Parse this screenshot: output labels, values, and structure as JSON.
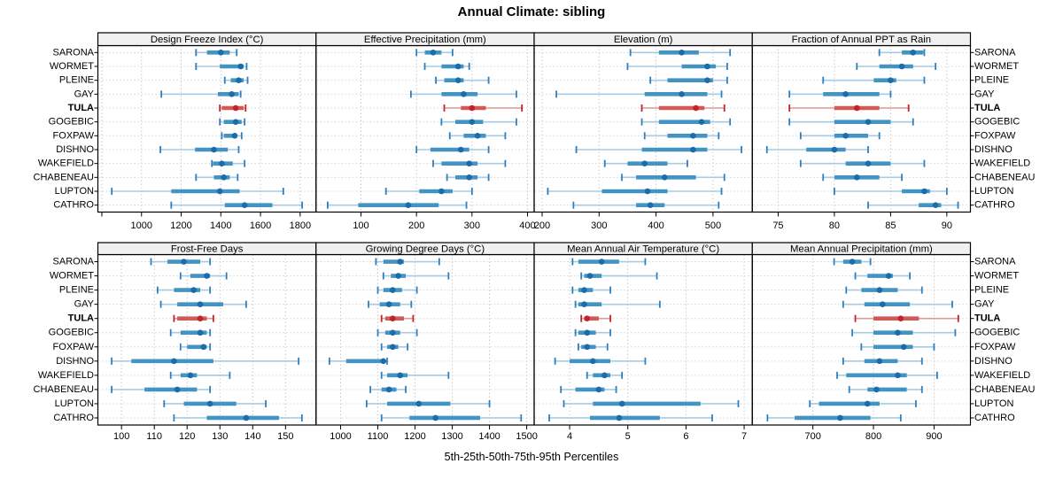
{
  "title": "Annual Climate: sibling",
  "footer": "5th-25th-50th-75th-95th Percentiles",
  "sites": [
    "SARONA",
    "WORMET",
    "PLEINE",
    "GAY",
    "TULA",
    "GOGEBIC",
    "FOXPAW",
    "DISHNO",
    "WAKEFIELD",
    "CHABENEAU",
    "LUPTON",
    "CATHRO"
  ],
  "highlight_site": "TULA",
  "colors": {
    "normal": {
      "dot": "#1b6ca8",
      "box": "#4393c3",
      "line": "#a6cbe3",
      "cap": "#2f7fbe"
    },
    "highlight": {
      "dot": "#c02428",
      "box": "#cf5a56",
      "line": "#dc9a97",
      "cap": "#c02428"
    },
    "strip_bg": "#f0f0f0",
    "grid": "#c9c9c9",
    "border": "#000000",
    "text": "#000000"
  },
  "chart_data": {
    "type": "trellis-percentile-dotplot",
    "percentile_order": [
      "p5",
      "p25",
      "p50",
      "p75",
      "p95"
    ],
    "panel_grid": {
      "rows": 2,
      "cols": 4
    },
    "panels": [
      {
        "title": "Design Freeze Index (°C)",
        "row": 0,
        "col": 0,
        "xlim": [
          780,
          1880
        ],
        "ticks": [
          1000,
          1200,
          1400,
          1600,
          1800
        ],
        "extra_ticks": [
          800
        ],
        "values": {
          "SARONA": [
            1275,
            1330,
            1400,
            1445,
            1480
          ],
          "WORMET": [
            1275,
            1395,
            1500,
            1515,
            1530
          ],
          "PLEINE": [
            1420,
            1450,
            1490,
            1515,
            1535
          ],
          "GAY": [
            1100,
            1385,
            1455,
            1490,
            1500
          ],
          "TULA": [
            1395,
            1405,
            1475,
            1515,
            1525
          ],
          "GOGEBIC": [
            1395,
            1415,
            1475,
            1505,
            1520
          ],
          "FOXPAW": [
            1405,
            1415,
            1470,
            1480,
            1505
          ],
          "DISHNO": [
            1095,
            1270,
            1365,
            1435,
            1490
          ],
          "WAKEFIELD": [
            1355,
            1360,
            1405,
            1460,
            1520
          ],
          "CHABENEAU": [
            1275,
            1365,
            1415,
            1445,
            1485
          ],
          "LUPTON": [
            850,
            1150,
            1395,
            1495,
            1715
          ],
          "CATHRO": [
            1150,
            1420,
            1520,
            1660,
            1810
          ]
        }
      },
      {
        "title": "Effective Precipitation (mm)",
        "row": 0,
        "col": 1,
        "xlim": [
          19,
          412
        ],
        "ticks": [
          100,
          200,
          300,
          400
        ],
        "extra_ticks": [],
        "values": {
          "SARONA": [
            200,
            215,
            230,
            245,
            265
          ],
          "WORMET": [
            215,
            245,
            275,
            285,
            295
          ],
          "PLEINE": [
            235,
            250,
            275,
            285,
            330
          ],
          "GAY": [
            190,
            245,
            285,
            310,
            380
          ],
          "TULA": [
            250,
            280,
            300,
            325,
            390
          ],
          "GOGEBIC": [
            245,
            270,
            300,
            320,
            380
          ],
          "FOXPAW": [
            260,
            285,
            310,
            325,
            360
          ],
          "DISHNO": [
            200,
            225,
            280,
            295,
            330
          ],
          "WAKEFIELD": [
            230,
            245,
            295,
            310,
            360
          ],
          "CHABENEAU": [
            255,
            270,
            295,
            310,
            330
          ],
          "LUPTON": [
            145,
            205,
            245,
            265,
            300
          ],
          "CATHRO": [
            40,
            95,
            185,
            240,
            290
          ]
        }
      },
      {
        "title": "Elevation (m)",
        "row": 0,
        "col": 2,
        "xlim": [
          186,
          569
        ],
        "ticks": [
          200,
          300,
          400,
          500
        ],
        "extra_ticks": [],
        "values": {
          "SARONA": [
            355,
            405,
            445,
            475,
            530
          ],
          "WORMET": [
            350,
            445,
            490,
            505,
            525
          ],
          "PLEINE": [
            390,
            420,
            490,
            500,
            525
          ],
          "GAY": [
            225,
            380,
            445,
            490,
            515
          ],
          "TULA": [
            375,
            405,
            470,
            485,
            520
          ],
          "GOGEBIC": [
            375,
            405,
            480,
            495,
            530
          ],
          "FOXPAW": [
            380,
            420,
            465,
            490,
            510
          ],
          "DISHNO": [
            260,
            375,
            465,
            490,
            550
          ],
          "WAKEFIELD": [
            310,
            350,
            380,
            420,
            455
          ],
          "CHABENEAU": [
            340,
            365,
            415,
            470,
            520
          ],
          "LUPTON": [
            210,
            305,
            385,
            420,
            515
          ],
          "CATHRO": [
            255,
            365,
            390,
            415,
            510
          ]
        }
      },
      {
        "title": "Fraction of Annual PPT as Rain",
        "row": 0,
        "col": 3,
        "xlim": [
          72.7,
          92.1
        ],
        "ticks": [
          75,
          80,
          85,
          90
        ],
        "extra_ticks": [],
        "values": {
          "SARONA": [
            84,
            86,
            87,
            87.9,
            88
          ],
          "WORMET": [
            82,
            84,
            86,
            87,
            89
          ],
          "PLEINE": [
            79,
            83.5,
            85,
            85.5,
            88
          ],
          "GAY": [
            76,
            79,
            81,
            84,
            85
          ],
          "TULA": [
            76,
            80,
            82,
            84,
            86.6
          ],
          "GOGEBIC": [
            76,
            80,
            83,
            85,
            87
          ],
          "FOXPAW": [
            77,
            80,
            81,
            83,
            84
          ],
          "DISHNO": [
            74,
            77.5,
            80,
            81,
            83
          ],
          "WAKEFIELD": [
            77,
            81,
            83,
            85,
            88
          ],
          "CHABENEAU": [
            79,
            80,
            82,
            84,
            86
          ],
          "LUPTON": [
            80,
            86,
            88,
            88.5,
            90
          ],
          "CATHRO": [
            83,
            87.5,
            89,
            89.5,
            91
          ]
        }
      },
      {
        "title": "Frost-Free Days",
        "row": 1,
        "col": 0,
        "xlim": [
          92.8,
          159.3
        ],
        "ticks": [
          100,
          110,
          120,
          130,
          140,
          150
        ],
        "extra_ticks": [],
        "values": {
          "SARONA": [
            109,
            114,
            119,
            124,
            127
          ],
          "WORMET": [
            118,
            121,
            126,
            127,
            132
          ],
          "PLEINE": [
            111,
            116,
            122,
            124,
            127
          ],
          "GAY": [
            112,
            117,
            124,
            131,
            138
          ],
          "TULA": [
            116,
            117,
            124,
            126,
            128
          ],
          "GOGEBIC": [
            115,
            118,
            124,
            126,
            127
          ],
          "FOXPAW": [
            118,
            120,
            125,
            126,
            127
          ],
          "DISHNO": [
            97,
            103,
            116,
            128,
            154
          ],
          "WAKEFIELD": [
            115,
            118,
            121,
            123,
            133
          ],
          "CHABENEAU": [
            97,
            107,
            117,
            123,
            127
          ],
          "LUPTON": [
            113,
            119,
            127,
            135,
            144
          ],
          "CATHRO": [
            116,
            126,
            138,
            148,
            155
          ]
        }
      },
      {
        "title": "Growing Degree Days (°C)",
        "row": 1,
        "col": 1,
        "xlim": [
          934,
          1520
        ],
        "ticks": [
          1000,
          1100,
          1200,
          1300,
          1400,
          1500
        ],
        "extra_ticks": [],
        "values": {
          "SARONA": [
            1095,
            1115,
            1160,
            1170,
            1265
          ],
          "WORMET": [
            1115,
            1135,
            1155,
            1175,
            1290
          ],
          "PLEINE": [
            1100,
            1115,
            1140,
            1165,
            1205
          ],
          "GAY": [
            1075,
            1105,
            1130,
            1160,
            1190
          ],
          "TULA": [
            1110,
            1120,
            1140,
            1170,
            1195
          ],
          "GOGEBIC": [
            1100,
            1120,
            1140,
            1160,
            1205
          ],
          "FOXPAW": [
            1110,
            1125,
            1140,
            1155,
            1180
          ],
          "DISHNO": [
            970,
            1015,
            1115,
            1120,
            1125
          ],
          "WAKEFIELD": [
            1110,
            1125,
            1160,
            1180,
            1290
          ],
          "CHABENEAU": [
            1080,
            1110,
            1130,
            1150,
            1175
          ],
          "LUPTON": [
            1070,
            1125,
            1210,
            1295,
            1400
          ],
          "CATHRO": [
            1110,
            1185,
            1255,
            1375,
            1485
          ]
        }
      },
      {
        "title": "Mean Annual Air Temperature (°C)",
        "row": 1,
        "col": 2,
        "xlim": [
          3.39,
          7.14
        ],
        "ticks": [
          4,
          5,
          6,
          7
        ],
        "extra_ticks": [],
        "values": {
          "SARONA": [
            4.05,
            4.15,
            4.55,
            4.85,
            5.3
          ],
          "WORMET": [
            4.2,
            4.25,
            4.35,
            4.55,
            5.5
          ],
          "PLEINE": [
            4.05,
            4.15,
            4.25,
            4.4,
            4.7
          ],
          "GAY": [
            4.1,
            4.15,
            4.25,
            4.55,
            5.55
          ],
          "TULA": [
            4.2,
            4.25,
            4.3,
            4.5,
            4.7
          ],
          "GOGEBIC": [
            4.1,
            4.15,
            4.3,
            4.45,
            4.7
          ],
          "FOXPAW": [
            4.15,
            4.2,
            4.3,
            4.45,
            4.65
          ],
          "DISHNO": [
            3.75,
            4.0,
            4.4,
            4.7,
            5.3
          ],
          "WAKEFIELD": [
            4.3,
            4.4,
            4.6,
            4.7,
            4.9
          ],
          "CHABENEAU": [
            3.85,
            4.1,
            4.5,
            4.6,
            4.8
          ],
          "LUPTON": [
            3.9,
            4.4,
            4.9,
            6.25,
            6.9
          ],
          "CATHRO": [
            3.65,
            4.35,
            4.85,
            5.55,
            6.45
          ]
        }
      },
      {
        "title": "Mean Annual Precipitation (mm)",
        "row": 1,
        "col": 3,
        "xlim": [
          600,
          960
        ],
        "ticks": [
          700,
          800,
          900
        ],
        "extra_ticks": [],
        "values": {
          "SARONA": [
            735,
            750,
            765,
            780,
            795
          ],
          "WORMET": [
            770,
            790,
            825,
            832,
            860
          ],
          "PLEINE": [
            755,
            780,
            810,
            840,
            880
          ],
          "GAY": [
            750,
            785,
            815,
            860,
            930
          ],
          "TULA": [
            770,
            800,
            845,
            875,
            940
          ],
          "GOGEBIC": [
            765,
            800,
            840,
            865,
            935
          ],
          "FOXPAW": [
            780,
            800,
            850,
            865,
            900
          ],
          "DISHNO": [
            750,
            785,
            810,
            840,
            880
          ],
          "WAKEFIELD": [
            740,
            755,
            840,
            855,
            905
          ],
          "CHABENEAU": [
            760,
            790,
            805,
            855,
            880
          ],
          "LUPTON": [
            695,
            710,
            790,
            810,
            870
          ],
          "CATHRO": [
            625,
            670,
            745,
            795,
            845
          ]
        }
      }
    ]
  }
}
